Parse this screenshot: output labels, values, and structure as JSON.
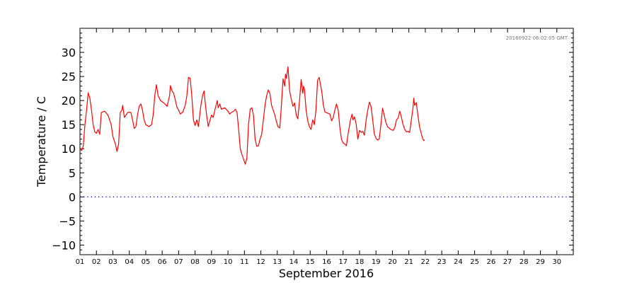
{
  "chart_data": {
    "type": "line",
    "title": "",
    "xlabel": "September 2016",
    "ylabel": "Temperature / C",
    "timestamp": "20160922 06:02:05 GMT",
    "x_unit": "day of month",
    "xlim": [
      1,
      31
    ],
    "ylim": [
      -12,
      35
    ],
    "y_ticks": [
      "30",
      "25",
      "20",
      "15",
      "10",
      "5",
      "0",
      "−5",
      "−10"
    ],
    "y_tick_values": [
      30,
      25,
      20,
      15,
      10,
      5,
      0,
      -5,
      -10
    ],
    "x_ticks": [
      "01",
      "02",
      "03",
      "04",
      "05",
      "06",
      "07",
      "08",
      "09",
      "10",
      "11",
      "12",
      "13",
      "14",
      "15",
      "16",
      "17",
      "18",
      "19",
      "20",
      "21",
      "22",
      "23",
      "24",
      "25",
      "26",
      "27",
      "28",
      "29",
      "30"
    ],
    "reference_line": {
      "y": 0,
      "color": "#0000ff",
      "style": "dotted"
    },
    "series": [
      {
        "color": "#ff0000",
        "points": [
          [
            1.0,
            10.0
          ],
          [
            1.1,
            9.6
          ],
          [
            1.2,
            10.5
          ],
          [
            1.3,
            15
          ],
          [
            1.4,
            18
          ],
          [
            1.5,
            21.6
          ],
          [
            1.6,
            20.5
          ],
          [
            1.7,
            18
          ],
          [
            1.8,
            15
          ],
          [
            1.9,
            13.5
          ],
          [
            2.0,
            13.2
          ],
          [
            2.1,
            14
          ],
          [
            2.2,
            13
          ],
          [
            2.3,
            17.5
          ],
          [
            2.5,
            17.8
          ],
          [
            2.7,
            17
          ],
          [
            2.9,
            15
          ],
          [
            3.0,
            12.5
          ],
          [
            3.15,
            11
          ],
          [
            3.25,
            9.4
          ],
          [
            3.35,
            11
          ],
          [
            3.45,
            17.5
          ],
          [
            3.55,
            18
          ],
          [
            3.6,
            19
          ],
          [
            3.7,
            16.5
          ],
          [
            3.8,
            17
          ],
          [
            3.9,
            17.5
          ],
          [
            4.0,
            17.6
          ],
          [
            4.1,
            17.5
          ],
          [
            4.2,
            16
          ],
          [
            4.3,
            14.2
          ],
          [
            4.4,
            14.6
          ],
          [
            4.5,
            17
          ],
          [
            4.6,
            18.8
          ],
          [
            4.7,
            19.3
          ],
          [
            4.8,
            18
          ],
          [
            4.9,
            16
          ],
          [
            5.0,
            15
          ],
          [
            5.2,
            14.6
          ],
          [
            5.35,
            15
          ],
          [
            5.45,
            17
          ],
          [
            5.55,
            21
          ],
          [
            5.65,
            23.3
          ],
          [
            5.75,
            21
          ],
          [
            5.9,
            20
          ],
          [
            6.1,
            19.5
          ],
          [
            6.3,
            18.8
          ],
          [
            6.45,
            21
          ],
          [
            6.5,
            23.1
          ],
          [
            6.6,
            22
          ],
          [
            6.7,
            21.5
          ],
          [
            6.8,
            20
          ],
          [
            6.9,
            18.6
          ],
          [
            7.0,
            18
          ],
          [
            7.1,
            17.2
          ],
          [
            7.25,
            17.6
          ],
          [
            7.4,
            19
          ],
          [
            7.5,
            21
          ],
          [
            7.6,
            24.8
          ],
          [
            7.7,
            24.6
          ],
          [
            7.8,
            21
          ],
          [
            7.9,
            16
          ],
          [
            8.0,
            14.8
          ],
          [
            8.1,
            16
          ],
          [
            8.2,
            14.6
          ],
          [
            8.35,
            19
          ],
          [
            8.45,
            21
          ],
          [
            8.55,
            22
          ],
          [
            8.6,
            20
          ],
          [
            8.7,
            17
          ],
          [
            8.8,
            14.6
          ],
          [
            8.9,
            15.8
          ],
          [
            9.0,
            17
          ],
          [
            9.1,
            16.5
          ],
          [
            9.2,
            18
          ],
          [
            9.3,
            19.3
          ],
          [
            9.35,
            20
          ],
          [
            9.4,
            18.5
          ],
          [
            9.5,
            19.3
          ],
          [
            9.6,
            18.2
          ],
          [
            9.8,
            18.5
          ],
          [
            10.0,
            17.8
          ],
          [
            10.1,
            17.2
          ],
          [
            10.2,
            17.5
          ],
          [
            10.35,
            17.8
          ],
          [
            10.45,
            18.2
          ],
          [
            10.55,
            17.5
          ],
          [
            10.65,
            14
          ],
          [
            10.75,
            10
          ],
          [
            10.85,
            8.8
          ],
          [
            10.95,
            7.8
          ],
          [
            11.05,
            6.8
          ],
          [
            11.15,
            8
          ],
          [
            11.25,
            15
          ],
          [
            11.35,
            18.2
          ],
          [
            11.45,
            18.5
          ],
          [
            11.55,
            17
          ],
          [
            11.65,
            12
          ],
          [
            11.75,
            10.5
          ],
          [
            11.85,
            10.6
          ],
          [
            11.95,
            12
          ],
          [
            12.05,
            13
          ],
          [
            12.15,
            16
          ],
          [
            12.25,
            19
          ],
          [
            12.35,
            21
          ],
          [
            12.45,
            22.2
          ],
          [
            12.55,
            21.5
          ],
          [
            12.65,
            19
          ],
          [
            12.75,
            18
          ],
          [
            12.85,
            17
          ],
          [
            12.95,
            15.6
          ],
          [
            13.05,
            14.5
          ],
          [
            13.15,
            14.3
          ],
          [
            13.25,
            19
          ],
          [
            13.35,
            24.5
          ],
          [
            13.45,
            23
          ],
          [
            13.5,
            25.5
          ],
          [
            13.55,
            24.6
          ],
          [
            13.65,
            27
          ],
          [
            13.75,
            22
          ],
          [
            13.85,
            20.3
          ],
          [
            13.95,
            18.8
          ],
          [
            14.05,
            19.5
          ],
          [
            14.15,
            17
          ],
          [
            14.25,
            16.2
          ],
          [
            14.35,
            20
          ],
          [
            14.45,
            24.4
          ],
          [
            14.55,
            21.5
          ],
          [
            14.6,
            23
          ],
          [
            14.65,
            22.4
          ],
          [
            14.75,
            18
          ],
          [
            14.85,
            15.8
          ],
          [
            14.95,
            14.6
          ],
          [
            15.05,
            14
          ],
          [
            15.15,
            16
          ],
          [
            15.25,
            15
          ],
          [
            15.35,
            18
          ],
          [
            15.45,
            24.2
          ],
          [
            15.55,
            24.8
          ],
          [
            15.6,
            23.8
          ],
          [
            15.7,
            22
          ],
          [
            15.8,
            19
          ],
          [
            15.9,
            17.6
          ],
          [
            16.05,
            17.4
          ],
          [
            16.2,
            17.2
          ],
          [
            16.3,
            15.8
          ],
          [
            16.4,
            16.5
          ],
          [
            16.5,
            18
          ],
          [
            16.6,
            19.3
          ],
          [
            16.7,
            18
          ],
          [
            16.8,
            14.5
          ],
          [
            16.9,
            12
          ],
          [
            17.0,
            11.2
          ],
          [
            17.1,
            11
          ],
          [
            17.2,
            10.6
          ],
          [
            17.3,
            13
          ],
          [
            17.45,
            16
          ],
          [
            17.55,
            17.2
          ],
          [
            17.6,
            16
          ],
          [
            17.7,
            16.6
          ],
          [
            17.8,
            15
          ],
          [
            17.9,
            12
          ],
          [
            18.0,
            13.8
          ],
          [
            18.1,
            13.4
          ],
          [
            18.2,
            13.6
          ],
          [
            18.3,
            12.8
          ],
          [
            18.4,
            16
          ],
          [
            18.5,
            18
          ],
          [
            18.6,
            19.7
          ],
          [
            18.7,
            18.8
          ],
          [
            18.8,
            16
          ],
          [
            18.9,
            13
          ],
          [
            19.0,
            12.2
          ],
          [
            19.1,
            11.8
          ],
          [
            19.2,
            12
          ],
          [
            19.3,
            15
          ],
          [
            19.4,
            18.4
          ],
          [
            19.5,
            17
          ],
          [
            19.6,
            15.5
          ],
          [
            19.7,
            14.6
          ],
          [
            19.9,
            14
          ],
          [
            20.05,
            13.8
          ],
          [
            20.15,
            14.5
          ],
          [
            20.25,
            16
          ],
          [
            20.35,
            16.4
          ],
          [
            20.45,
            17.8
          ],
          [
            20.55,
            16.5
          ],
          [
            20.65,
            15
          ],
          [
            20.75,
            14
          ],
          [
            20.85,
            13.5
          ],
          [
            20.95,
            13.6
          ],
          [
            21.05,
            13.4
          ],
          [
            21.15,
            16
          ],
          [
            21.25,
            18.5
          ],
          [
            21.3,
            20.5
          ],
          [
            21.35,
            19
          ],
          [
            21.45,
            19.6
          ],
          [
            21.55,
            17
          ],
          [
            21.65,
            14.5
          ],
          [
            21.75,
            13.2
          ],
          [
            21.85,
            12
          ],
          [
            21.9,
            11.7
          ],
          [
            21.95,
            11.9
          ]
        ]
      }
    ]
  }
}
